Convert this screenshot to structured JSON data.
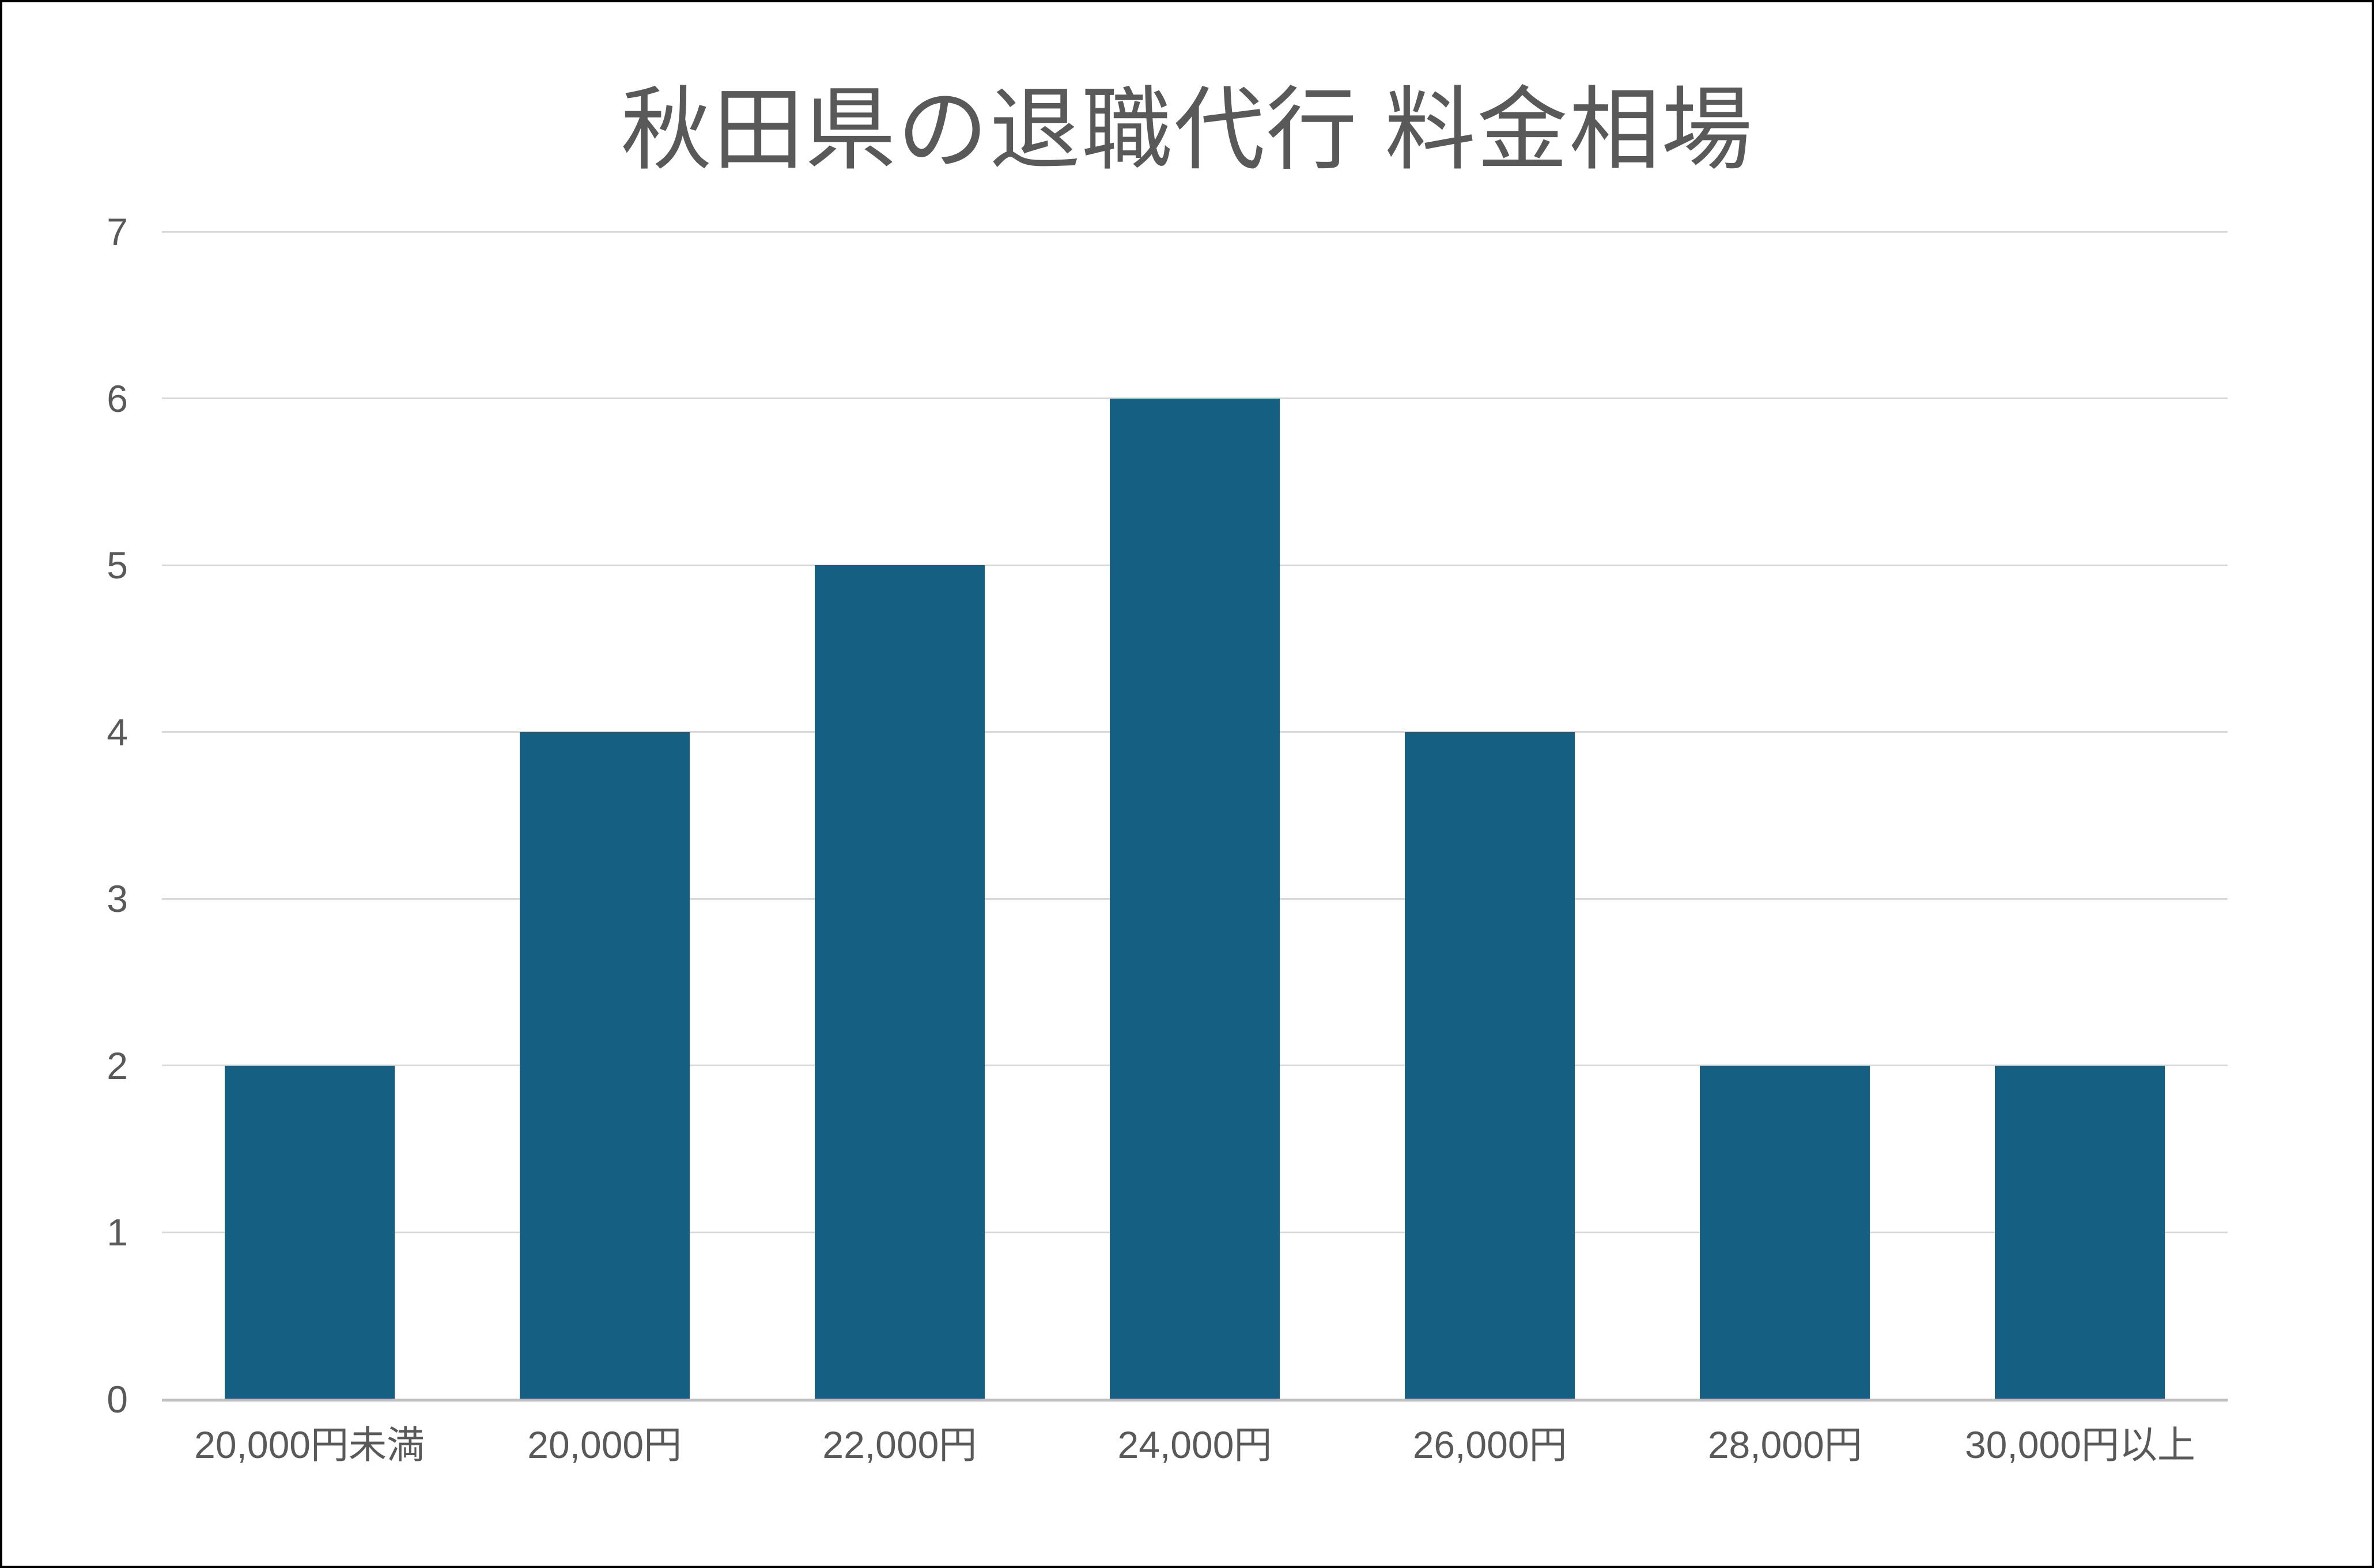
{
  "window": {
    "background_color": "#ffffff",
    "frame_color": "#000000"
  },
  "chart_data": {
    "type": "bar",
    "title": "秋田県の退職代行 料金相場",
    "categories": [
      "20,000円未満",
      "20,000円",
      "22,000円",
      "24,000円",
      "26,000円",
      "28,000円",
      "30,000円以上"
    ],
    "values": [
      2,
      4,
      5,
      6,
      4,
      2,
      2
    ],
    "xlabel": "",
    "ylabel": "",
    "ylim": [
      0,
      7
    ],
    "yticks": [
      0,
      1,
      2,
      3,
      4,
      5,
      6,
      7
    ],
    "grid": true,
    "legend": false,
    "bar_color": "#156082",
    "title_color": "#595959",
    "tick_label_color": "#595959",
    "gridline_color": "#d9d9d9",
    "axis_line_color": "#c0c0c0"
  }
}
